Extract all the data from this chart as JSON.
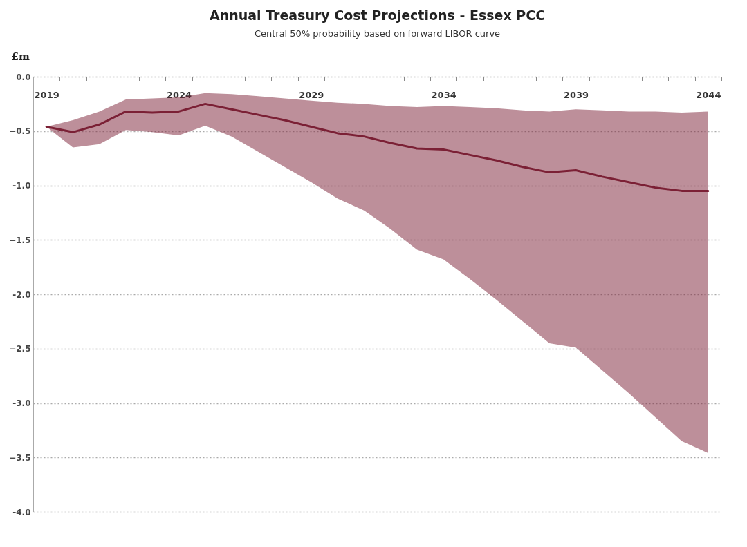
{
  "chart_data": {
    "type": "line",
    "title": "Annual Treasury Cost Projections - Essex PCC",
    "subtitle": "Central 50% probability based on forward LIBOR curve",
    "ylabel": "£m",
    "categories": [
      "2019",
      null,
      null,
      null,
      null,
      "2024",
      null,
      null,
      null,
      null,
      "2029",
      null,
      null,
      null,
      null,
      "2034",
      null,
      null,
      null,
      null,
      "2039",
      null,
      null,
      null,
      null,
      "2044"
    ],
    "series": [
      {
        "color": "#7b2035",
        "values": [
          -0.46,
          -0.51,
          -0.44,
          -0.32,
          -0.33,
          -0.32,
          -0.25,
          -0.3,
          -0.35,
          -0.4,
          -0.46,
          -0.52,
          -0.55,
          -0.61,
          -0.66,
          -0.67,
          -0.72,
          -0.77,
          -0.83,
          -0.88,
          -0.86,
          -0.92,
          -0.97,
          -1.02,
          -1.05,
          -1.05
        ],
        "lower": [
          -0.46,
          -0.65,
          -0.62,
          -0.49,
          -0.51,
          -0.54,
          -0.45,
          -0.55,
          -0.69,
          -0.83,
          -0.97,
          -1.12,
          -1.23,
          -1.4,
          -1.59,
          -1.68,
          -1.86,
          -2.05,
          -2.25,
          -2.45,
          -2.49,
          -2.7,
          -2.91,
          -3.13,
          -3.35,
          -3.46
        ],
        "upper": [
          -0.46,
          -0.4,
          -0.32,
          -0.21,
          -0.2,
          -0.19,
          -0.15,
          -0.16,
          -0.18,
          -0.2,
          -0.22,
          -0.24,
          -0.25,
          -0.27,
          -0.28,
          -0.27,
          -0.28,
          -0.29,
          -0.31,
          -0.32,
          -0.3,
          -0.31,
          -0.32,
          -0.32,
          -0.33,
          -0.32
        ]
      }
    ],
    "ylim": [
      -4,
      0
    ],
    "yticks": [
      {
        "value": 0,
        "label": "0.0"
      },
      -0.5,
      {
        "value": -1,
        "label": "-1.0"
      },
      -1.5,
      {
        "value": -2,
        "label": "-2.0"
      },
      -2.5,
      {
        "value": -3,
        "label": "-3.0"
      },
      -3.5,
      {
        "value": -4,
        "label": "-4.0"
      }
    ],
    "grid": "y"
  }
}
